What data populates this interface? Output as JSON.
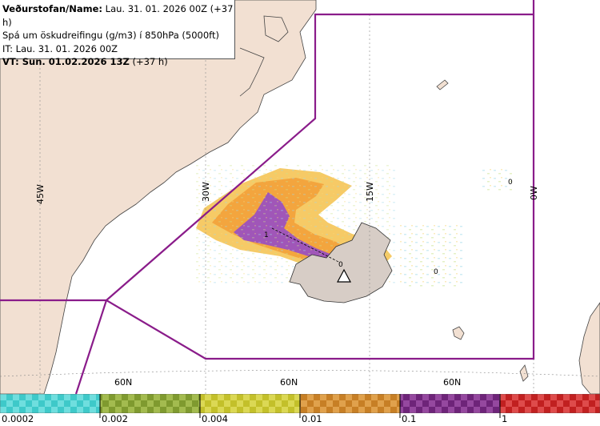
{
  "info": {
    "line1_bold": "Veðurstofan/Name:",
    "line1_rest": " Lau. 31. 01. 2026 00Z (+37 h)",
    "line2": "Spá um öskudreifingu (g/m3) í 850hPa (5000ft)",
    "line3": "IT: Lau. 31. 01. 2026 00Z",
    "line4_bold": "VT: Sun. 01.02.2026 13Z",
    "line4_rest": " (+37 h)"
  },
  "longitude_labels": [
    "45W",
    "30W",
    "15W",
    "0W"
  ],
  "latitude_labels": [
    "60N",
    "60N",
    "60N"
  ],
  "contour_labels": [
    "1",
    "0",
    "0",
    "0"
  ],
  "legend": {
    "colors": [
      "#3ec9c9",
      "#8ea63a",
      "#c9c631",
      "#d28a2e",
      "#7b2f86",
      "#c82a2a"
    ],
    "labels": [
      "0.0002",
      "0.002",
      "0.004",
      "0.01",
      "0.1",
      "1"
    ]
  },
  "colors": {
    "land": "#f2e0d2",
    "region_outline": "#8a1c8a",
    "ash_low": "#f5c14b",
    "ash_mid": "#f3a13a",
    "ash_high": "#a056b8"
  }
}
